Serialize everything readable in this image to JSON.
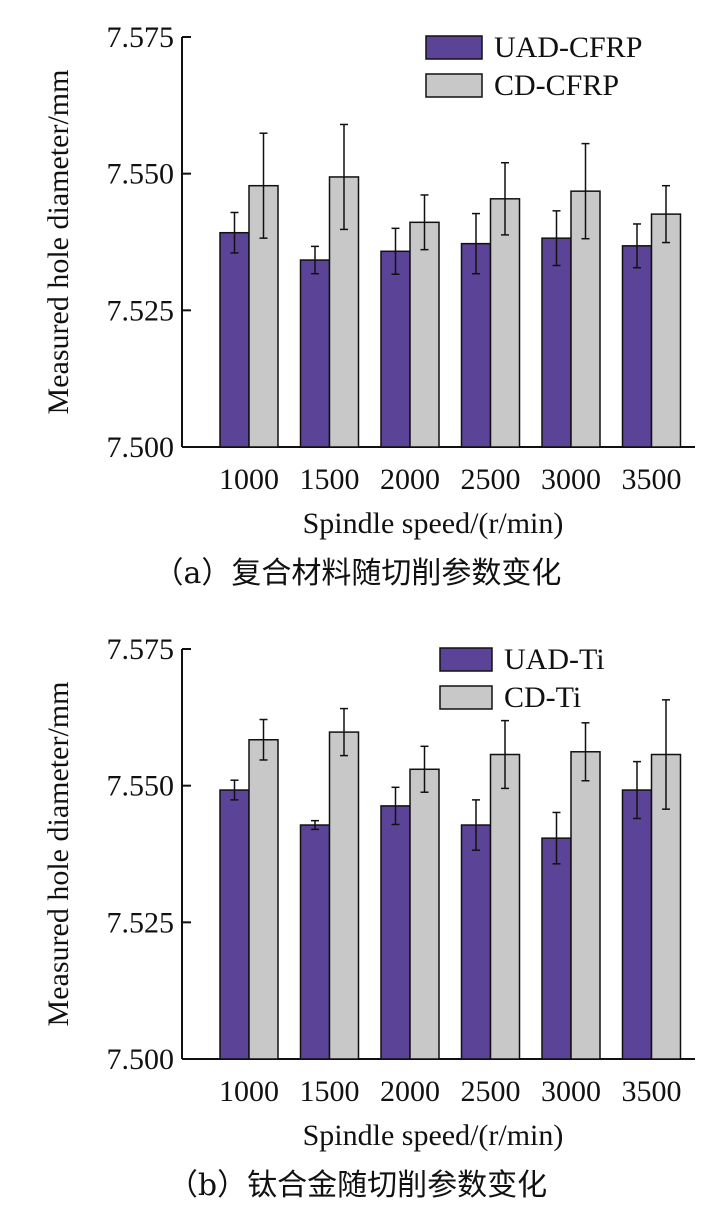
{
  "chart_data": [
    {
      "type": "bar",
      "caption": "（a）复合材料随切削参数变化",
      "xlabel": "Spindle speed/(r/min)",
      "ylabel": "Measured hole diameter/mm",
      "ylim": [
        7.5,
        7.575
      ],
      "yticks": [
        "7.500",
        "7.525",
        "7.550",
        "7.575"
      ],
      "categories": [
        "1000",
        "1500",
        "2000",
        "2500",
        "3000",
        "3500"
      ],
      "legend_position": "top-right",
      "series": [
        {
          "name": "UAD-CFRP",
          "color": "#5b4497",
          "values": [
            7.5392,
            7.5342,
            7.5358,
            7.5372,
            7.5382,
            7.5368
          ],
          "errors": [
            0.0037,
            0.0025,
            0.0042,
            0.0055,
            0.005,
            0.004
          ]
        },
        {
          "name": "CD-CFRP",
          "color": "#c8c8c8",
          "values": [
            7.5478,
            7.5494,
            7.5411,
            7.5454,
            7.5468,
            7.5426
          ],
          "errors": [
            0.0096,
            0.0096,
            0.005,
            0.0066,
            0.0087,
            0.0052
          ]
        }
      ]
    },
    {
      "type": "bar",
      "caption": "（b）钛合金随切削参数变化",
      "xlabel": "Spindle speed/(r/min)",
      "ylabel": "Measured hole diameter/mm",
      "ylim": [
        7.5,
        7.575
      ],
      "yticks": [
        "7.500",
        "7.525",
        "7.550",
        "7.575"
      ],
      "categories": [
        "1000",
        "1500",
        "2000",
        "2500",
        "3000",
        "3500"
      ],
      "legend_position": "top-right",
      "series": [
        {
          "name": "UAD-Ti",
          "color": "#5b4497",
          "values": [
            7.5492,
            7.5428,
            7.5463,
            7.5428,
            7.5404,
            7.5492
          ],
          "errors": [
            0.0018,
            0.0008,
            0.0034,
            0.0046,
            0.0047,
            0.0052
          ]
        },
        {
          "name": "CD-Ti",
          "color": "#c8c8c8",
          "values": [
            7.5584,
            7.5598,
            7.553,
            7.5557,
            7.5562,
            7.5557
          ],
          "errors": [
            0.0037,
            0.0043,
            0.0042,
            0.0062,
            0.0053,
            0.01
          ]
        }
      ]
    }
  ]
}
